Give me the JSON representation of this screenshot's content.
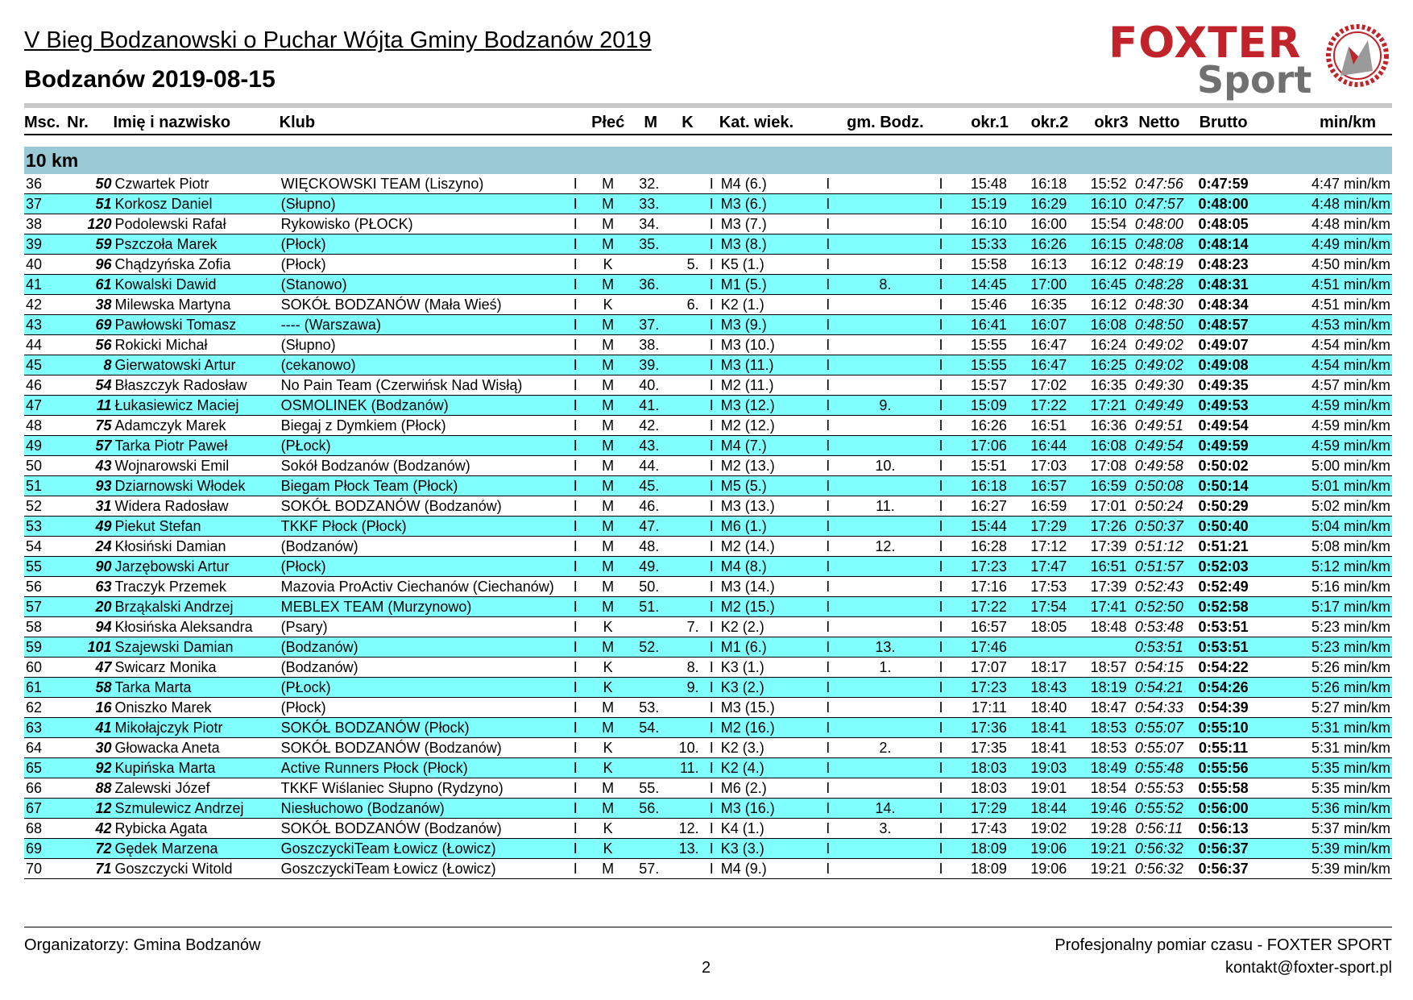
{
  "header": {
    "title": "V Bieg Bodzanowski o Puchar Wójta Gminy Bodzanów 2019",
    "subtitle": "Bodzanów 2019-08-15",
    "logo_top": "FOXTER",
    "logo_bottom": "Sport"
  },
  "columns": {
    "msc": "Msc.",
    "nr": "Nr.",
    "name": "Imię i nazwisko",
    "club": "Klub",
    "plec": "Płeć",
    "m": "M",
    "k": "K",
    "kat": "Kat. wiek.",
    "gm": "gm. Bodz.",
    "okr1": "okr.1",
    "okr2": "okr.2",
    "okr3": "okr3",
    "netto": "Netto",
    "brutto": "Brutto",
    "pace": "min/km"
  },
  "category": "10 km",
  "separator": "I",
  "rows": [
    [
      "36",
      "50",
      "Czwartek Piotr",
      "WIĘCKOWSKI TEAM (Liszyno)",
      "M",
      "32.",
      "",
      "M4 (6.)",
      "",
      "15:48",
      "16:18",
      "15:52",
      "0:47:56",
      "0:47:59",
      "4:47 min/km"
    ],
    [
      "37",
      "51",
      "Korkosz Daniel",
      "(Słupno)",
      "M",
      "33.",
      "",
      "M3 (6.)",
      "",
      "15:19",
      "16:29",
      "16:10",
      "0:47:57",
      "0:48:00",
      "4:48 min/km"
    ],
    [
      "38",
      "120",
      "Podolewski Rafał",
      "Rykowisko (PŁOCK)",
      "M",
      "34.",
      "",
      "M3 (7.)",
      "",
      "16:10",
      "16:00",
      "15:54",
      "0:48:00",
      "0:48:05",
      "4:48 min/km"
    ],
    [
      "39",
      "59",
      "Pszczoła Marek",
      "(Płock)",
      "M",
      "35.",
      "",
      "M3 (8.)",
      "",
      "15:33",
      "16:26",
      "16:15",
      "0:48:08",
      "0:48:14",
      "4:49 min/km"
    ],
    [
      "40",
      "96",
      "Chądzyńska Zofia",
      "(Płock)",
      "K",
      "",
      "5.",
      "K5 (1.)",
      "",
      "15:58",
      "16:13",
      "16:12",
      "0:48:19",
      "0:48:23",
      "4:50 min/km"
    ],
    [
      "41",
      "61",
      "Kowalski Dawid",
      "(Stanowo)",
      "M",
      "36.",
      "",
      "M1 (5.)",
      "8.",
      "14:45",
      "17:00",
      "16:45",
      "0:48:28",
      "0:48:31",
      "4:51 min/km"
    ],
    [
      "42",
      "38",
      "Milewska Martyna",
      "SOKÓŁ BODZANÓW (Mała Wieś)",
      "K",
      "",
      "6.",
      "K2 (1.)",
      "",
      "15:46",
      "16:35",
      "16:12",
      "0:48:30",
      "0:48:34",
      "4:51 min/km"
    ],
    [
      "43",
      "69",
      "Pawłowski Tomasz",
      "---- (Warszawa)",
      "M",
      "37.",
      "",
      "M3 (9.)",
      "",
      "16:41",
      "16:07",
      "16:08",
      "0:48:50",
      "0:48:57",
      "4:53 min/km"
    ],
    [
      "44",
      "56",
      "Rokicki Michał",
      "(Słupno)",
      "M",
      "38.",
      "",
      "M3 (10.)",
      "",
      "15:55",
      "16:47",
      "16:24",
      "0:49:02",
      "0:49:07",
      "4:54 min/km"
    ],
    [
      "45",
      "8",
      "Gierwatowski Artur",
      "(cekanowo)",
      "M",
      "39.",
      "",
      "M3 (11.)",
      "",
      "15:55",
      "16:47",
      "16:25",
      "0:49:02",
      "0:49:08",
      "4:54 min/km"
    ],
    [
      "46",
      "54",
      "Błaszczyk Radosław",
      "No Pain Team (Czerwińsk Nad Wisłą)",
      "M",
      "40.",
      "",
      "M2 (11.)",
      "",
      "15:57",
      "17:02",
      "16:35",
      "0:49:30",
      "0:49:35",
      "4:57 min/km"
    ],
    [
      "47",
      "11",
      "Łukasiewicz Maciej",
      "OSMOLINEK (Bodzanów)",
      "M",
      "41.",
      "",
      "M3 (12.)",
      "9.",
      "15:09",
      "17:22",
      "17:21",
      "0:49:49",
      "0:49:53",
      "4:59 min/km"
    ],
    [
      "48",
      "75",
      "Adamczyk Marek",
      "Biegaj z Dymkiem (Płock)",
      "M",
      "42.",
      "",
      "M2 (12.)",
      "",
      "16:26",
      "16:51",
      "16:36",
      "0:49:51",
      "0:49:54",
      "4:59 min/km"
    ],
    [
      "49",
      "57",
      "Tarka Piotr Paweł",
      "(PŁock)",
      "M",
      "43.",
      "",
      "M4 (7.)",
      "",
      "17:06",
      "16:44",
      "16:08",
      "0:49:54",
      "0:49:59",
      "4:59 min/km"
    ],
    [
      "50",
      "43",
      "Wojnarowski Emil",
      "Sokół Bodzanów (Bodzanów)",
      "M",
      "44.",
      "",
      "M2 (13.)",
      "10.",
      "15:51",
      "17:03",
      "17:08",
      "0:49:58",
      "0:50:02",
      "5:00 min/km"
    ],
    [
      "51",
      "93",
      "Dziarnowski Włodek",
      "Biegam Płock Team (Płock)",
      "M",
      "45.",
      "",
      "M5 (5.)",
      "",
      "16:18",
      "16:57",
      "16:59",
      "0:50:08",
      "0:50:14",
      "5:01 min/km"
    ],
    [
      "52",
      "31",
      "Widera Radosław",
      "SOKÓŁ BODZANÓW (Bodzanów)",
      "M",
      "46.",
      "",
      "M3 (13.)",
      "11.",
      "16:27",
      "16:59",
      "17:01",
      "0:50:24",
      "0:50:29",
      "5:02 min/km"
    ],
    [
      "53",
      "49",
      "Piekut Stefan",
      "TKKF Płock (Płock)",
      "M",
      "47.",
      "",
      "M6 (1.)",
      "",
      "15:44",
      "17:29",
      "17:26",
      "0:50:37",
      "0:50:40",
      "5:04 min/km"
    ],
    [
      "54",
      "24",
      "Kłosiński Damian",
      "(Bodzanów)",
      "M",
      "48.",
      "",
      "M2 (14.)",
      "12.",
      "16:28",
      "17:12",
      "17:39",
      "0:51:12",
      "0:51:21",
      "5:08 min/km"
    ],
    [
      "55",
      "90",
      "Jarzębowski Artur",
      "(Płock)",
      "M",
      "49.",
      "",
      "M4 (8.)",
      "",
      "17:23",
      "17:47",
      "16:51",
      "0:51:57",
      "0:52:03",
      "5:12 min/km"
    ],
    [
      "56",
      "63",
      "Traczyk Przemek",
      "Mazovia ProActiv Ciechanów (Ciechanów)",
      "M",
      "50.",
      "",
      "M3 (14.)",
      "",
      "17:16",
      "17:53",
      "17:39",
      "0:52:43",
      "0:52:49",
      "5:16 min/km"
    ],
    [
      "57",
      "20",
      "Brząkalski Andrzej",
      "MEBLEX TEAM (Murzynowo)",
      "M",
      "51.",
      "",
      "M2 (15.)",
      "",
      "17:22",
      "17:54",
      "17:41",
      "0:52:50",
      "0:52:58",
      "5:17 min/km"
    ],
    [
      "58",
      "94",
      "Kłosińska Aleksandra",
      "(Psary)",
      "K",
      "",
      "7.",
      "K2 (2.)",
      "",
      "16:57",
      "18:05",
      "18:48",
      "0:53:48",
      "0:53:51",
      "5:23 min/km"
    ],
    [
      "59",
      "101",
      "Szajewski Damian",
      "(Bodzanów)",
      "M",
      "52.",
      "",
      "M1 (6.)",
      "13.",
      "17:46",
      "",
      "",
      "0:53:51",
      "0:53:51",
      "5:23 min/km"
    ],
    [
      "60",
      "47",
      "Swicarz Monika",
      "(Bodzanów)",
      "K",
      "",
      "8.",
      "K3 (1.)",
      "1.",
      "17:07",
      "18:17",
      "18:57",
      "0:54:15",
      "0:54:22",
      "5:26 min/km"
    ],
    [
      "61",
      "58",
      "Tarka Marta",
      "(PŁock)",
      "K",
      "",
      "9.",
      "K3 (2.)",
      "",
      "17:23",
      "18:43",
      "18:19",
      "0:54:21",
      "0:54:26",
      "5:26 min/km"
    ],
    [
      "62",
      "16",
      "Oniszko Marek",
      "(Płock)",
      "M",
      "53.",
      "",
      "M3 (15.)",
      "",
      "17:11",
      "18:40",
      "18:47",
      "0:54:33",
      "0:54:39",
      "5:27 min/km"
    ],
    [
      "63",
      "41",
      "Mikołajczyk Piotr",
      "SOKÓŁ BODZANÓW (Płock)",
      "M",
      "54.",
      "",
      "M2 (16.)",
      "",
      "17:36",
      "18:41",
      "18:53",
      "0:55:07",
      "0:55:10",
      "5:31 min/km"
    ],
    [
      "64",
      "30",
      "Głowacka Aneta",
      "SOKÓŁ BODZANÓW (Bodzanów)",
      "K",
      "",
      "10.",
      "K2 (3.)",
      "2.",
      "17:35",
      "18:41",
      "18:53",
      "0:55:07",
      "0:55:11",
      "5:31 min/km"
    ],
    [
      "65",
      "92",
      "Kupińska Marta",
      "Active Runners Płock (Płock)",
      "K",
      "",
      "11.",
      "K2 (4.)",
      "",
      "18:03",
      "19:03",
      "18:49",
      "0:55:48",
      "0:55:56",
      "5:35 min/km"
    ],
    [
      "66",
      "88",
      "Zalewski Józef",
      "TKKF Wiślaniec Słupno (Rydzyno)",
      "M",
      "55.",
      "",
      "M6 (2.)",
      "",
      "18:03",
      "19:01",
      "18:54",
      "0:55:53",
      "0:55:58",
      "5:35 min/km"
    ],
    [
      "67",
      "12",
      "Szmulewicz Andrzej",
      "Niesłuchowo (Bodzanów)",
      "M",
      "56.",
      "",
      "M3 (16.)",
      "14.",
      "17:29",
      "18:44",
      "19:46",
      "0:55:52",
      "0:56:00",
      "5:36 min/km"
    ],
    [
      "68",
      "42",
      "Rybicka Agata",
      "SOKÓŁ BODZANÓW (Bodzanów)",
      "K",
      "",
      "12.",
      "K4 (1.)",
      "3.",
      "17:43",
      "19:02",
      "19:28",
      "0:56:11",
      "0:56:13",
      "5:37 min/km"
    ],
    [
      "69",
      "72",
      "Gędek Marzena",
      "GoszczyckiTeam Łowicz (Łowicz)",
      "K",
      "",
      "13.",
      "K3 (3.)",
      "",
      "18:09",
      "19:06",
      "19:21",
      "0:56:32",
      "0:56:37",
      "5:39 min/km"
    ],
    [
      "70",
      "71",
      "Goszczycki Witold",
      "GoszczyckiTeam Łowicz (Łowicz)",
      "M",
      "57.",
      "",
      "M4 (9.)",
      "",
      "18:09",
      "19:06",
      "19:21",
      "0:56:32",
      "0:56:37",
      "5:39 min/km"
    ]
  ],
  "footer": {
    "organizers": "Organizatorzy:  Gmina Bodzanów",
    "timing": "Profesjonalny pomiar czasu - FOXTER SPORT",
    "page": "2",
    "contact": "kontakt@foxter-sport.pl"
  },
  "colors": {
    "row_alt": "#80ffff",
    "category_bar": "#9ac8d4",
    "logo_red": "#c0242a",
    "logo_gray": "#707070"
  }
}
